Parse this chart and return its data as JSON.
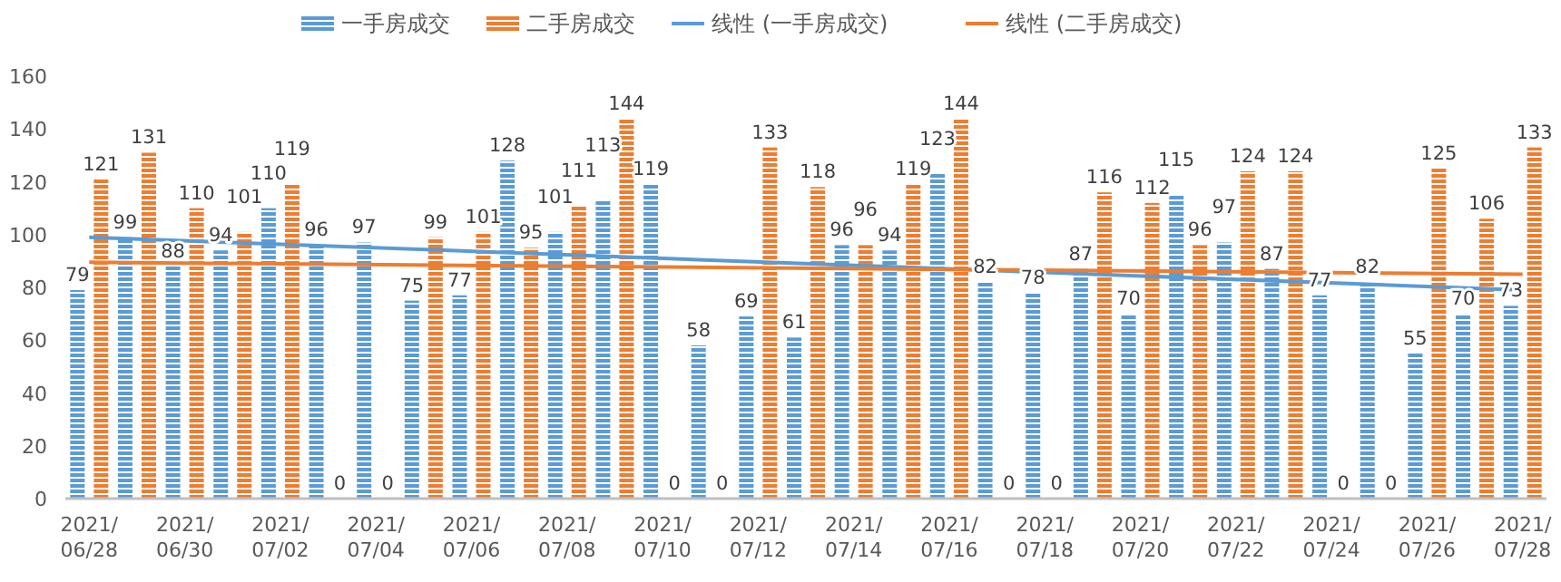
{
  "chart_data": {
    "type": "bar",
    "categories": [
      "2021/06/28",
      null,
      "2021/06/30",
      null,
      "2021/07/02",
      null,
      "2021/07/04",
      null,
      "2021/07/06",
      null,
      "2021/07/08",
      null,
      "2021/07/10",
      null,
      "2021/07/12",
      null,
      "2021/07/14",
      null,
      "2021/07/16",
      null,
      "2021/07/18",
      null,
      "2021/07/20",
      null,
      "2021/07/22",
      null,
      "2021/07/24",
      null,
      "2021/07/26",
      null,
      "2021/07/28"
    ],
    "series": [
      {
        "name": "一手房成交",
        "color": "#5b9bd5",
        "values": [
          79,
          99,
          88,
          94,
          110,
          96,
          97,
          75,
          77,
          128,
          101,
          113,
          119,
          58,
          69,
          61,
          96,
          94,
          123,
          82,
          78,
          87,
          70,
          115,
          97,
          87,
          77,
          82,
          55,
          70,
          73
        ],
        "value_labels": [
          "79",
          "99",
          "88",
          "94",
          "110",
          "96",
          "97",
          "75",
          "77",
          "128",
          "101",
          "113",
          "119",
          "58",
          "69",
          "61",
          "96",
          "94",
          "123",
          "82",
          "78",
          "87",
          "70",
          "115",
          "97",
          "87",
          "77",
          "82",
          "55",
          "70",
          "73"
        ]
      },
      {
        "name": "二手房成交",
        "color": "#ed7d31",
        "values": [
          121,
          131,
          110,
          101,
          119,
          0,
          0,
          99,
          101,
          95,
          111,
          144,
          0,
          0,
          133,
          118,
          96,
          119,
          144,
          0,
          0,
          116,
          112,
          96,
          124,
          124,
          0,
          0,
          125,
          106,
          133
        ],
        "value_labels": [
          "121",
          "131",
          "110",
          "101",
          "119",
          "0",
          "0",
          "99",
          "101",
          "95",
          "111",
          "144",
          "0",
          "0",
          "133",
          "118",
          "96",
          "119",
          "144",
          "0",
          "0",
          "116",
          "112",
          "96",
          "124",
          "124",
          "0",
          "0",
          "125",
          "106",
          "133"
        ]
      },
      {
        "name": "线性 (一手房成交)",
        "type": "line",
        "color": "#5b9bd5",
        "x": [
          "2021/06/28",
          "2021/07/28"
        ],
        "values": [
          99,
          79
        ]
      },
      {
        "name": "线性 (二手房成交)",
        "type": "line",
        "color": "#ed7d31",
        "x": [
          "2021/06/28",
          "2021/07/28"
        ],
        "values": [
          89.5,
          85
        ]
      }
    ],
    "ylim": [
      0,
      160
    ],
    "yticks": [
      0,
      20,
      40,
      60,
      80,
      100,
      120,
      140,
      160
    ],
    "grid": false,
    "legend": "top"
  }
}
